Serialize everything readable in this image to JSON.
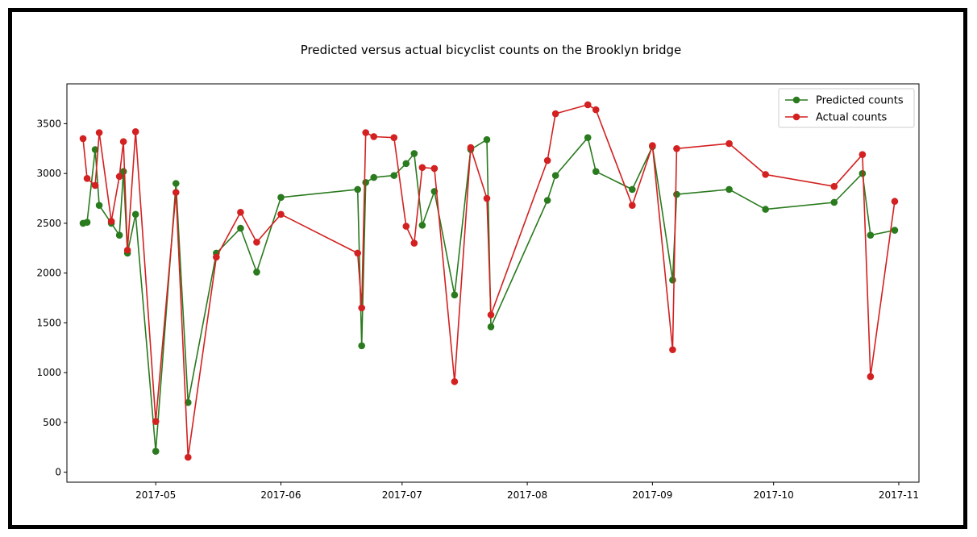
{
  "chart_data": {
    "type": "line",
    "title": "Predicted versus actual bicyclist counts on the Brooklyn bridge",
    "xlabel": "",
    "ylabel": "",
    "x_axis": "date",
    "xlim": [
      "2017-04-09",
      "2017-11-06"
    ],
    "ylim": [
      -100,
      3900
    ],
    "xticks": [
      "2017-05",
      "2017-06",
      "2017-07",
      "2017-08",
      "2017-09",
      "2017-10",
      "2017-11"
    ],
    "yticks": [
      0,
      500,
      1000,
      1500,
      2000,
      2500,
      3000,
      3500
    ],
    "grid": false,
    "legend_position": "top-right",
    "x": [
      "2017-04-13",
      "2017-04-14",
      "2017-04-16",
      "2017-04-17",
      "2017-04-20",
      "2017-04-22",
      "2017-04-23",
      "2017-04-24",
      "2017-04-26",
      "2017-05-01",
      "2017-05-06",
      "2017-05-09",
      "2017-05-16",
      "2017-05-22",
      "2017-05-26",
      "2017-06-01",
      "2017-06-20",
      "2017-06-21",
      "2017-06-22",
      "2017-06-24",
      "2017-06-29",
      "2017-07-02",
      "2017-07-04",
      "2017-07-06",
      "2017-07-09",
      "2017-07-14",
      "2017-07-18",
      "2017-07-22",
      "2017-07-23",
      "2017-08-06",
      "2017-08-08",
      "2017-08-16",
      "2017-08-18",
      "2017-08-27",
      "2017-09-01",
      "2017-09-06",
      "2017-09-07",
      "2017-09-20",
      "2017-09-29",
      "2017-10-16",
      "2017-10-23",
      "2017-10-25",
      "2017-10-31"
    ],
    "series": [
      {
        "name": "Predicted counts",
        "color": "#2a7a1e",
        "values": [
          2500,
          2510,
          3240,
          2680,
          2500,
          2380,
          3020,
          2200,
          2590,
          210,
          2900,
          700,
          2200,
          2450,
          2010,
          2760,
          2840,
          1270,
          2910,
          2960,
          2980,
          3100,
          3200,
          2480,
          2820,
          1780,
          3240,
          3340,
          1460,
          2730,
          2980,
          3360,
          3020,
          2840,
          3270,
          1930,
          2790,
          2840,
          2640,
          2710,
          3000,
          2380,
          2430
        ]
      },
      {
        "name": "Actual counts",
        "color": "#d32020",
        "values": [
          3350,
          2950,
          2880,
          3410,
          2520,
          2970,
          3320,
          2230,
          3420,
          510,
          2810,
          150,
          2160,
          2610,
          2310,
          2590,
          2200,
          1650,
          3410,
          3370,
          3360,
          2470,
          2300,
          3060,
          3050,
          910,
          3260,
          2750,
          1580,
          3130,
          3600,
          3690,
          3640,
          2680,
          3280,
          1230,
          3250,
          3300,
          2990,
          2870,
          3190,
          960,
          2720
        ]
      }
    ]
  }
}
